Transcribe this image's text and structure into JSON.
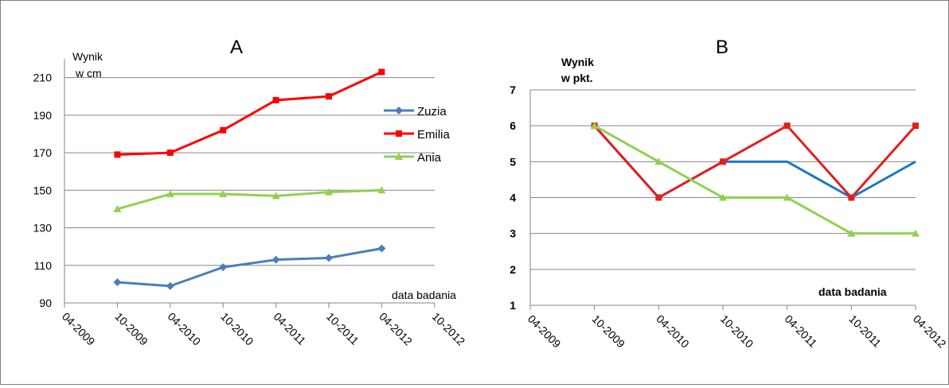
{
  "chart_data": [
    {
      "type": "line",
      "title": "A",
      "ylabel": [
        "Wynik",
        "w cm"
      ],
      "xlabel": "data badania",
      "ylim": [
        90,
        220
      ],
      "yticks": [
        90,
        110,
        130,
        150,
        170,
        190,
        210
      ],
      "categories": [
        "04-2009",
        "10-2009",
        "04-2010",
        "10-2010",
        "04-2011",
        "10-2011",
        "04-2012",
        "10-2012"
      ],
      "legend_position": "right",
      "grid": true,
      "series": [
        {
          "name": "Zuzia",
          "color": "#4a7ebb",
          "marker": "diamond",
          "values": [
            null,
            101,
            99,
            109,
            113,
            114,
            119,
            null
          ]
        },
        {
          "name": "Emilia",
          "color": "#ff0000",
          "marker": "square",
          "values": [
            null,
            169,
            170,
            182,
            198,
            200,
            213,
            null
          ]
        },
        {
          "name": "Ania",
          "color": "#92d050",
          "marker": "triangle",
          "values": [
            null,
            140,
            148,
            148,
            147,
            149,
            150,
            null
          ]
        }
      ]
    },
    {
      "type": "line",
      "title": "B",
      "ylabel": [
        "Wynik",
        "w pkt."
      ],
      "xlabel": "data badania",
      "ylim": [
        1,
        7
      ],
      "yticks": [
        1,
        2,
        3,
        4,
        5,
        6,
        7
      ],
      "categories": [
        "04-2009",
        "10-2009",
        "04-2010",
        "10-2010",
        "04-2011",
        "10-2011",
        "04-2012"
      ],
      "legend_position": "none",
      "grid": true,
      "series": [
        {
          "color": "#1f77c4",
          "marker": "none",
          "values": [
            null,
            6,
            4,
            5,
            5,
            4,
            5
          ]
        },
        {
          "color": "#e0201f",
          "marker": "square",
          "values": [
            null,
            6,
            4,
            5,
            6,
            4,
            6
          ]
        },
        {
          "color": "#92d050",
          "marker": "triangle",
          "values": [
            null,
            6,
            5,
            4,
            4,
            3,
            3
          ]
        }
      ]
    }
  ]
}
